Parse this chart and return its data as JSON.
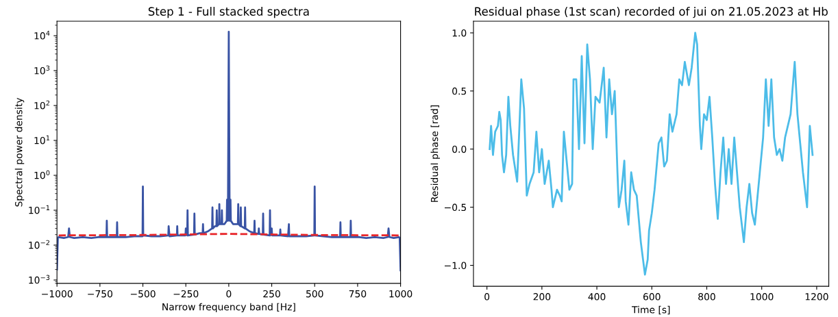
{
  "chart_data": [
    {
      "type": "line",
      "title": "Step 1 - Full stacked spectra",
      "xlabel": "Narrow frequency band [Hz]",
      "ylabel": "Spectral power density",
      "log": "y",
      "xlim": [
        -1000,
        1000
      ],
      "xticks": [
        {
          "value": -1000,
          "label": "−1000"
        },
        {
          "value": -750,
          "label": "−750"
        },
        {
          "value": -500,
          "label": "−500"
        },
        {
          "value": -250,
          "label": "−250"
        },
        0,
        250,
        500,
        750,
        1000
      ],
      "ylim": [
        0.0008,
        26000
      ],
      "yticks": [
        {
          "value": 0.001,
          "label": "10$^{−3}$"
        },
        {
          "value": 0.01,
          "label": "10$^{−2}$"
        },
        {
          "value": 0.1,
          "label": "10$^{−1}$"
        },
        {
          "value": 1,
          "label": "10$^{0}$"
        },
        {
          "value": 10,
          "label": "10$^{1}$"
        },
        {
          "value": 100,
          "label": "10$^{2}$"
        },
        {
          "value": 1000,
          "label": "10$^{3}$"
        },
        {
          "value": 10000,
          "label": "10$^{4}$"
        }
      ],
      "series": [
        {
          "color": "#3953a4",
          "line_style": "solid",
          "marker": "none",
          "x": [
            -1000,
            -995,
            -990,
            -960,
            -935,
            -930,
            -925,
            -900,
            -850,
            -800,
            -760,
            -712,
            -710,
            -708,
            -652,
            -650,
            -648,
            -600,
            -550,
            -502,
            -500,
            -498,
            -450,
            -400,
            -352,
            -350,
            -345,
            -302,
            -300,
            -298,
            -252,
            -250,
            -242,
            -240,
            -238,
            -202,
            -200,
            -198,
            -170,
            -152,
            -150,
            -148,
            -120,
            -97,
            -95,
            -93,
            -80,
            -72,
            -70,
            -68,
            -57,
            -55,
            -53,
            -42,
            -40,
            -38,
            -25,
            -12,
            -10,
            -5,
            0,
            5,
            10,
            12,
            25,
            40,
            53,
            55,
            57,
            68,
            70,
            72,
            93,
            95,
            97,
            120,
            148,
            150,
            152,
            173,
            175,
            177,
            198,
            200,
            202,
            238,
            240,
            242,
            250,
            252,
            298,
            300,
            302,
            345,
            350,
            352,
            400,
            450,
            498,
            500,
            502,
            550,
            600,
            648,
            650,
            652,
            708,
            710,
            712,
            760,
            800,
            850,
            900,
            925,
            930,
            935,
            960,
            990,
            995,
            1000
          ],
          "values": [
            0.002,
            0.016,
            0.017,
            0.016,
            0.017,
            0.03,
            0.017,
            0.016,
            0.017,
            0.016,
            0.017,
            0.017,
            0.05,
            0.017,
            0.017,
            0.045,
            0.017,
            0.017,
            0.018,
            0.018,
            0.48,
            0.019,
            0.018,
            0.018,
            0.019,
            0.035,
            0.018,
            0.019,
            0.035,
            0.019,
            0.019,
            0.03,
            0.019,
            0.1,
            0.019,
            0.02,
            0.08,
            0.02,
            0.022,
            0.022,
            0.04,
            0.022,
            0.025,
            0.03,
            0.12,
            0.03,
            0.035,
            0.035,
            0.1,
            0.035,
            0.04,
            0.15,
            0.04,
            0.04,
            0.1,
            0.04,
            0.04,
            0.05,
            0.2,
            0.05,
            13000,
            0.05,
            0.2,
            0.05,
            0.04,
            0.04,
            0.04,
            0.15,
            0.04,
            0.035,
            0.12,
            0.035,
            0.03,
            0.12,
            0.03,
            0.025,
            0.022,
            0.05,
            0.022,
            0.021,
            0.03,
            0.021,
            0.02,
            0.08,
            0.02,
            0.019,
            0.1,
            0.019,
            0.03,
            0.019,
            0.019,
            0.028,
            0.019,
            0.018,
            0.04,
            0.018,
            0.018,
            0.018,
            0.019,
            0.48,
            0.019,
            0.018,
            0.017,
            0.017,
            0.045,
            0.017,
            0.017,
            0.05,
            0.017,
            0.017,
            0.016,
            0.017,
            0.016,
            0.017,
            0.03,
            0.017,
            0.016,
            0.017,
            0.016,
            0.0019
          ]
        },
        {
          "color": "#e8262a",
          "line_style": "dashed",
          "marker": "none",
          "x": [
            -990,
            -500,
            0,
            500,
            990
          ],
          "values": [
            0.019,
            0.0195,
            0.021,
            0.0195,
            0.019
          ]
        }
      ]
    },
    {
      "type": "line",
      "title": "Residual phase (1st scan) recorded of jui on 21.05.2023 at Hb",
      "xlabel": "Time [s]",
      "ylabel": "Residual phase [rad]",
      "xlim": [
        -49,
        1244
      ],
      "xticks": [
        0,
        200,
        400,
        600,
        800,
        1000,
        1200
      ],
      "ylim": [
        -1.18,
        1.1
      ],
      "yticks": [
        {
          "value": -1,
          "label": "−1.0"
        },
        {
          "value": -0.5,
          "label": "−0.5"
        },
        {
          "value": 0,
          "label": "0.0"
        },
        {
          "value": 0.5,
          "label": "0.5"
        },
        {
          "value": 1,
          "label": "1.0"
        }
      ],
      "series": [
        {
          "color": "#4cbce8",
          "line_style": "solid",
          "marker": "none",
          "x": [
            10,
            15,
            22,
            30,
            40,
            45,
            50,
            55,
            62,
            70,
            78,
            85,
            95,
            110,
            120,
            125,
            135,
            145,
            155,
            170,
            180,
            190,
            200,
            210,
            225,
            235,
            240,
            255,
            265,
            272,
            280,
            290,
            300,
            310,
            315,
            325,
            335,
            345,
            355,
            365,
            375,
            385,
            395,
            410,
            425,
            435,
            445,
            455,
            465,
            475,
            480,
            490,
            500,
            505,
            515,
            525,
            535,
            545,
            560,
            575,
            585,
            590,
            600,
            610,
            625,
            635,
            645,
            655,
            665,
            675,
            690,
            700,
            710,
            720,
            735,
            745,
            758,
            765,
            775,
            780,
            790,
            800,
            810,
            820,
            830,
            840,
            850,
            860,
            870,
            880,
            890,
            900,
            910,
            920,
            935,
            945,
            955,
            965,
            975,
            985,
            995,
            1005,
            1015,
            1025,
            1035,
            1045,
            1055,
            1065,
            1075,
            1085,
            1095,
            1105,
            1115,
            1120,
            1130,
            1140,
            1150,
            1160,
            1165,
            1175,
            1185
          ],
          "values": [
            0.0,
            0.2,
            -0.05,
            0.15,
            0.2,
            0.32,
            0.25,
            -0.05,
            -0.2,
            -0.05,
            0.45,
            0.2,
            -0.05,
            -0.28,
            0.3,
            0.6,
            0.35,
            -0.4,
            -0.3,
            -0.2,
            0.15,
            -0.2,
            0.0,
            -0.3,
            -0.1,
            -0.35,
            -0.5,
            -0.35,
            -0.4,
            -0.45,
            0.15,
            -0.1,
            -0.35,
            -0.3,
            0.6,
            0.6,
            0.0,
            0.8,
            0.05,
            0.9,
            0.6,
            0.0,
            0.45,
            0.4,
            0.7,
            0.1,
            0.6,
            0.3,
            0.5,
            -0.2,
            -0.5,
            -0.35,
            -0.1,
            -0.45,
            -0.65,
            -0.2,
            -0.35,
            -0.4,
            -0.8,
            -1.08,
            -0.95,
            -0.7,
            -0.55,
            -0.35,
            0.05,
            0.1,
            -0.15,
            -0.1,
            0.3,
            0.15,
            0.3,
            0.6,
            0.55,
            0.75,
            0.55,
            0.7,
            1.0,
            0.9,
            0.2,
            0.0,
            0.3,
            0.25,
            0.45,
            0.1,
            -0.3,
            -0.6,
            -0.2,
            0.1,
            -0.3,
            0.0,
            -0.3,
            0.1,
            -0.2,
            -0.5,
            -0.8,
            -0.5,
            -0.3,
            -0.55,
            -0.65,
            -0.4,
            -0.15,
            0.1,
            0.6,
            0.2,
            0.6,
            0.1,
            -0.05,
            0.0,
            -0.1,
            0.1,
            0.2,
            0.3,
            0.6,
            0.75,
            0.3,
            0.05,
            -0.2,
            -0.4,
            -0.5,
            0.2,
            -0.05
          ]
        }
      ]
    }
  ]
}
